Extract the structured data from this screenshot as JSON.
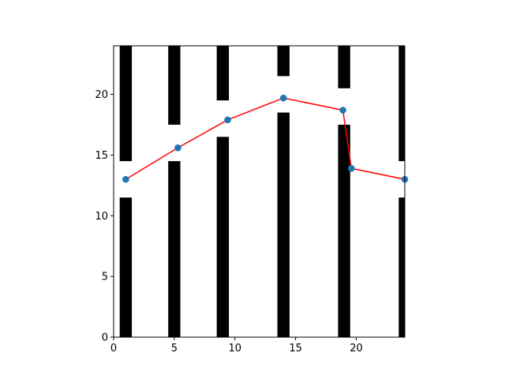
{
  "chart_data": {
    "type": "line",
    "title": "",
    "xlabel": "",
    "ylabel": "",
    "xlim": [
      0,
      24
    ],
    "ylim": [
      0,
      24
    ],
    "grid": false,
    "legend": "none",
    "x_ticks": [
      0,
      5,
      10,
      15,
      20
    ],
    "y_ticks": [
      0,
      5,
      10,
      15,
      20
    ],
    "x_tick_labels": [
      "0",
      "5",
      "10",
      "15",
      "20"
    ],
    "y_tick_labels": [
      "0",
      "5",
      "10",
      "15",
      "20"
    ],
    "series": [
      {
        "x": [
          1.0,
          5.3,
          9.4,
          14.0,
          18.9,
          19.6,
          24.0
        ],
        "y": [
          13.0,
          15.6,
          17.9,
          19.7,
          18.7,
          13.9,
          13.0
        ],
        "line_color": "#ff0000",
        "marker_color": "#1f77b4"
      }
    ],
    "background_walls": {
      "fill_color": "#000000",
      "columns": [
        {
          "x": [
            0.5,
            1.5
          ],
          "gap": [
            11.5,
            14.5
          ]
        },
        {
          "x": [
            4.5,
            5.5
          ],
          "gap": [
            14.5,
            17.5
          ]
        },
        {
          "x": [
            8.5,
            9.5
          ],
          "gap": [
            16.5,
            19.5
          ]
        },
        {
          "x": [
            13.5,
            14.5
          ],
          "gap": [
            18.5,
            21.5
          ]
        },
        {
          "x": [
            18.5,
            19.5
          ],
          "gap": [
            17.5,
            20.5
          ]
        },
        {
          "x": [
            23.5,
            24.0
          ],
          "gap": [
            11.5,
            14.5
          ]
        }
      ]
    }
  }
}
